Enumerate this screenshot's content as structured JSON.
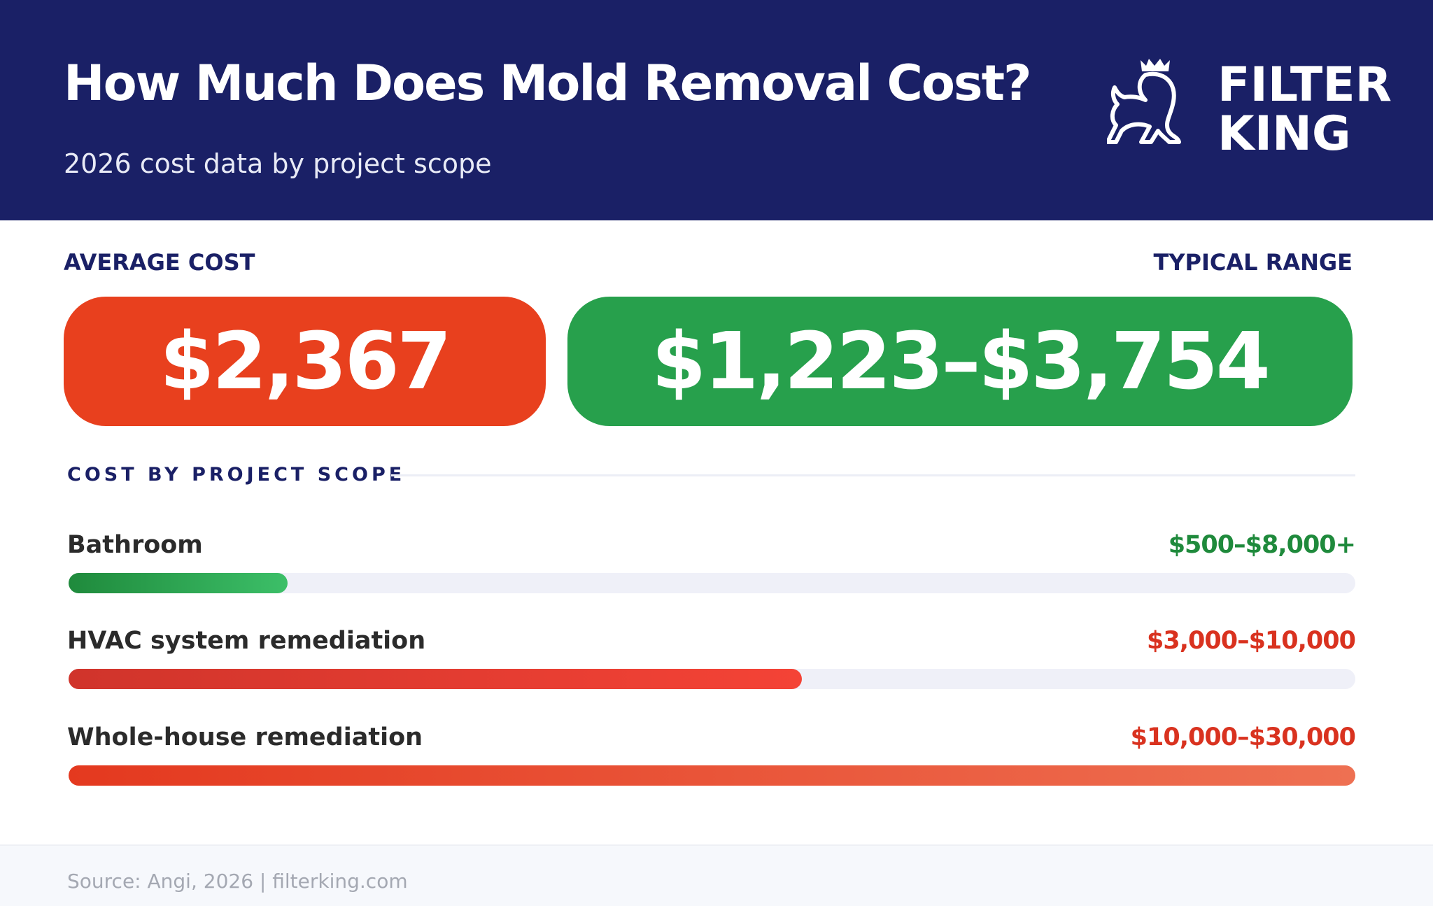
{
  "header": {
    "title": "How Much Does Mold Removal Cost?",
    "subtitle": "2026 cost data by project scope",
    "brand": [
      "FILTER",
      "KING"
    ]
  },
  "summary": {
    "average_label": "AVERAGE COST",
    "average_value": "$2,367",
    "range_label": "TYPICAL RANGE",
    "range_value": "$1,223–$3,754"
  },
  "scope": {
    "title": "COST BY PROJECT SCOPE",
    "rows": [
      {
        "label": "Bathroom",
        "range": "$500–$8,000+",
        "fill_percent": 17
      },
      {
        "label": "HVAC system remediation",
        "range": "$3,000–$10,000",
        "fill_percent": 57
      },
      {
        "label": "Whole-house remediation",
        "range": "$10,000–$30,000",
        "fill_percent": 100
      }
    ]
  },
  "footer": {
    "source": "Source: Angi, 2026 | filterking.com"
  }
}
